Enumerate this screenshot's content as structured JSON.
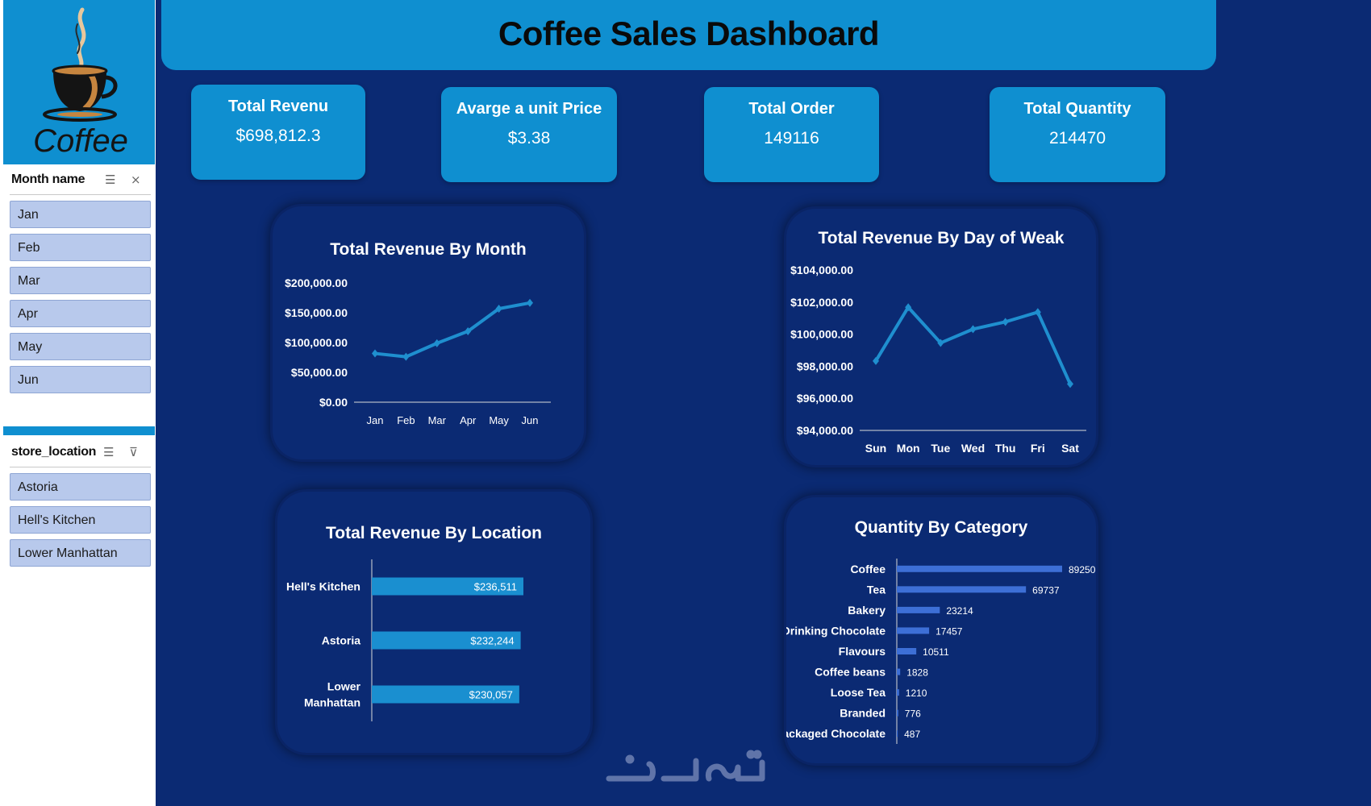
{
  "dashboard": {
    "title": "Coffee Sales Dashboard"
  },
  "logo": {
    "text": "Coffee"
  },
  "slicers": {
    "month": {
      "title": "Month name",
      "items": [
        "Jan",
        "Feb",
        "Mar",
        "Apr",
        "May",
        "Jun"
      ]
    },
    "location": {
      "title": "store_location",
      "items": [
        "Astoria",
        "Hell's Kitchen",
        "Lower Manhattan"
      ]
    }
  },
  "kpis": [
    {
      "label": "Total Revenu",
      "value": "$698,812.3"
    },
    {
      "label": "Avarge a unit Price",
      "value": "$3.38"
    },
    {
      "label": "Total Order",
      "value": "149116"
    },
    {
      "label": "Total Quantity",
      "value": "214470"
    }
  ],
  "colors": {
    "background": "#0b2a73",
    "accent": "#0f8fd0",
    "line": "#1f8fcf",
    "bar": "#1a8fd0",
    "bar_category": "#3d6fd6"
  },
  "chart_data": [
    {
      "type": "line",
      "title": "Total Revenue By Month",
      "categories": [
        "Jan",
        "Feb",
        "Mar",
        "Apr",
        "May",
        "Jun"
      ],
      "values": [
        81677,
        76145,
        98835,
        118941,
        156728,
        166486
      ],
      "ylim": [
        0,
        200000
      ],
      "yticks": [
        "$200,000.00",
        "$150,000.00",
        "$100,000.00",
        "$50,000.00",
        "$0.00"
      ],
      "grid": false,
      "legend": "none"
    },
    {
      "type": "line",
      "title": "Total Revenue By Day of Weak",
      "categories": [
        "Sun",
        "Mon",
        "Tue",
        "Wed",
        "Thu",
        "Fri",
        "Sat"
      ],
      "values": [
        98330,
        101677,
        99455,
        100313,
        100767,
        101373,
        96894
      ],
      "ylim": [
        94000,
        104000
      ],
      "yticks": [
        "$104,000.00",
        "$102,000.00",
        "$100,000.00",
        "$98,000.00",
        "$96,000.00",
        "$94,000.00"
      ],
      "grid": false,
      "legend": "none"
    },
    {
      "type": "bar",
      "orientation": "horizontal",
      "title": "Total Revenue By Location",
      "categories": [
        "Hell's Kitchen",
        "Astoria",
        "Lower Manhattan"
      ],
      "values": [
        236511,
        232244,
        230057
      ],
      "data_labels": [
        "$236,511",
        "$232,244",
        "$230,057"
      ],
      "legend": "none"
    },
    {
      "type": "bar",
      "orientation": "horizontal",
      "title": "Quantity By Category",
      "categories": [
        "Coffee",
        "Tea",
        "Bakery",
        "Drinking Chocolate",
        "Flavours",
        "Coffee beans",
        "Loose Tea",
        "Branded",
        "Packaged Chocolate"
      ],
      "values": [
        89250,
        69737,
        23214,
        17457,
        10511,
        1828,
        1210,
        776,
        487
      ],
      "data_labels": [
        "89250",
        "69737",
        "23214",
        "17457",
        "10511",
        "1828",
        "1210",
        "776",
        "487"
      ],
      "legend": "none"
    }
  ]
}
